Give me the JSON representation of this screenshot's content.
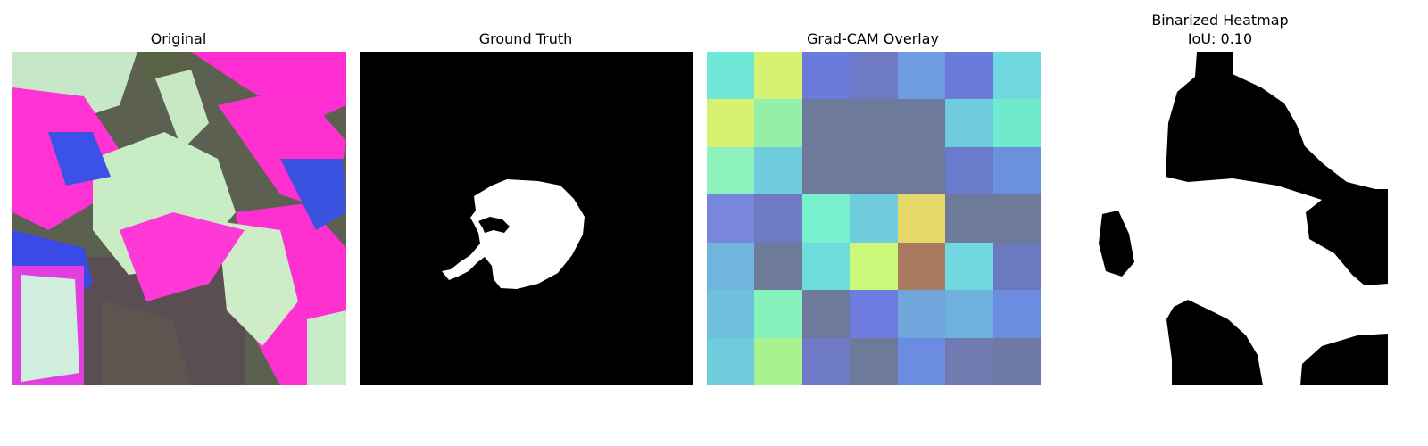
{
  "panels": [
    {
      "title": "Original"
    },
    {
      "title": "Ground Truth"
    },
    {
      "title": "Grad-CAM Overlay"
    },
    {
      "title_line1": "Binarized Heatmap",
      "title_line2": "IoU: 0.10"
    }
  ],
  "gradcam_colors": [
    [
      "#6fe8d8",
      "#d7f271",
      "#6b7bdc",
      "#6e7ac6",
      "#6f9ce0",
      "#6b7bdc",
      "#6fd8e0"
    ],
    [
      "#d7f271",
      "#94f0a8",
      "#6e7a9a",
      "#6e7a9a",
      "#6e7a9a",
      "#6fccdc",
      "#6feacc"
    ],
    [
      "#8ef2bc",
      "#6fccdc",
      "#6e7a9a",
      "#6e7a9a",
      "#6e7a9a",
      "#6b7bcc",
      "#6b90dc"
    ],
    [
      "#7886dc",
      "#6e7ac6",
      "#78f0cc",
      "#6fccdc",
      "#e4d86a",
      "#6e7a9a",
      "#6e7a9a"
    ],
    [
      "#70b6dc",
      "#6e7a9a",
      "#6fdcdc",
      "#ccf87a",
      "#a87a60",
      "#6fd8e0",
      "#6b7abf"
    ],
    [
      "#6fc0dc",
      "#86f2bc",
      "#6e7a9a",
      "#6e7ce0",
      "#6fa6dc",
      "#6fb0dc",
      "#6b8ce0"
    ],
    [
      "#6fccdc",
      "#aaf290",
      "#6e7ac6",
      "#6e7a9a",
      "#6b8ce0",
      "#6e7ab0",
      "#6e7aa6"
    ]
  ]
}
